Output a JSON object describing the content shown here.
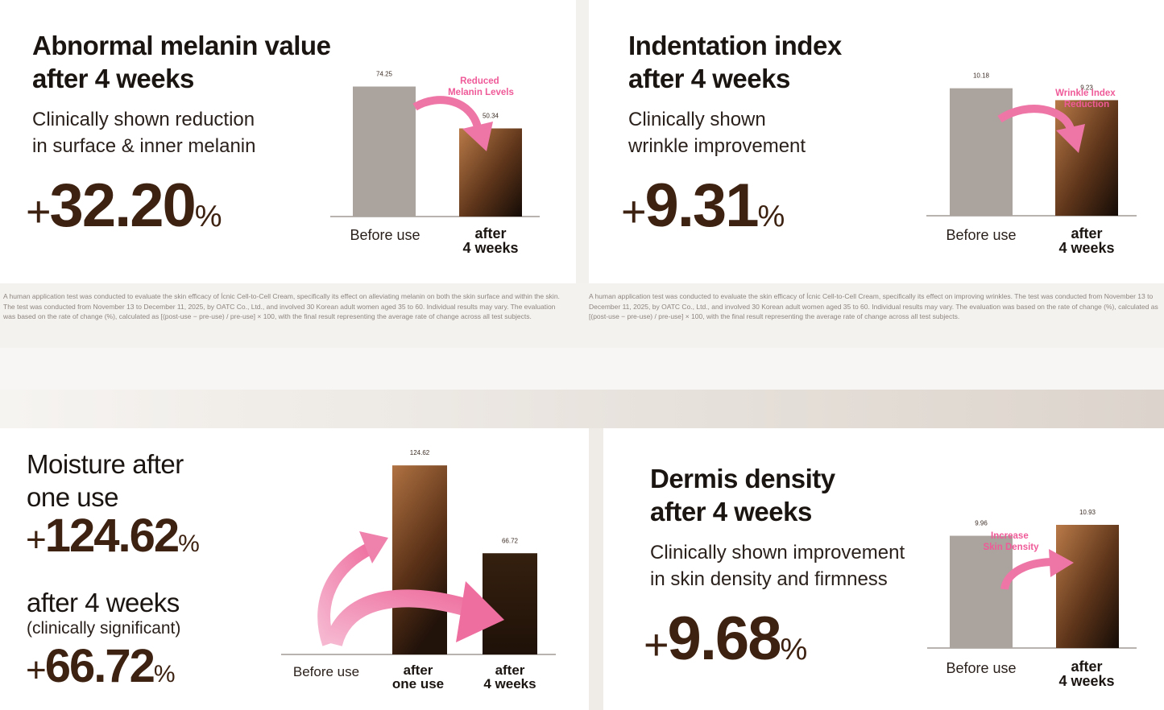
{
  "panels": [
    {
      "title_lines": [
        "Abnormal melanin value",
        "after 4 weeks"
      ],
      "subtitle_lines": [
        "Clinically shown reduction",
        "in surface & inner melanin"
      ],
      "stat": {
        "sign": "+",
        "value": "32.20",
        "unit": "%"
      },
      "annotation_lines": [
        "Reduced",
        "Melanin Levels"
      ],
      "footnote": "A human application test was conducted to evaluate the skin efficacy of Ícnic Cell-to-Cell Cream, specifically its effect on alleviating melanin on both the skin surface and within the skin. The test was conducted from November 13 to December 11, 2025, by OATC Co., Ltd., and involved 30 Korean adult women aged 35 to 60. Individual results may vary. The evaluation was based on the rate of change (%), calculated as [(post-use − pre-use) / pre-use] × 100, with the final result representing the average rate of change across all test subjects."
    },
    {
      "title_lines": [
        "Indentation index",
        "after 4 weeks"
      ],
      "subtitle_lines": [
        "Clinically shown",
        "wrinkle improvement"
      ],
      "stat": {
        "sign": "+",
        "value": "9.31",
        "unit": "%"
      },
      "annotation_lines": [
        "Wrinkle Index",
        "Reduction"
      ],
      "footnote": "A human application test was conducted to evaluate the skin efficacy of Ícnic Cell-to-Cell Cream, specifically its effect on improving wrinkles. The test was conducted from November 13 to December 11, 2025, by OATC Co., Ltd., and involved 30 Korean adult women aged 35 to 60. Individual results may vary. The evaluation was based on the rate of change (%), calculated as [(post-use − pre-use) / pre-use] × 100, with the final result representing the average rate of change across all test subjects."
    },
    {
      "title_lines": [
        "Moisture after",
        "one use"
      ],
      "stat": {
        "sign": "+",
        "value": "124.62",
        "unit": "%"
      },
      "second_title": "after 4 weeks",
      "second_note": "(clinically significant)",
      "second_stat": {
        "sign": "+",
        "value": "66.72",
        "unit": "%"
      }
    },
    {
      "title_lines": [
        "Dermis density",
        "after 4 weeks"
      ],
      "subtitle_lines": [
        "Clinically shown improvement",
        "in skin density and firmness"
      ],
      "stat": {
        "sign": "+",
        "value": "9.68",
        "unit": "%"
      },
      "annotation_lines": [
        "Increase",
        "Skin Density"
      ]
    }
  ],
  "chart_data": [
    {
      "type": "bar",
      "categories": [
        "Before use",
        "after 4 weeks"
      ],
      "values": [
        74.25,
        50.34
      ],
      "data_labels": [
        "74.25",
        "50.34"
      ],
      "ylim": [
        0,
        80
      ],
      "grid": false,
      "legend": "none",
      "colors": [
        "#aba39d",
        "#8a4f27"
      ]
    },
    {
      "type": "bar",
      "categories": [
        "Before use",
        "after 4 weeks"
      ],
      "values": [
        10.18,
        9.23
      ],
      "data_labels": [
        "10.18",
        "9.23"
      ],
      "ylim": [
        0,
        10.8
      ],
      "grid": false,
      "legend": "none",
      "colors": [
        "#aba39d",
        "#8a4f27"
      ]
    },
    {
      "type": "bar",
      "categories": [
        "Before use",
        "after one use",
        "after 4 weeks"
      ],
      "values": [
        0,
        124.62,
        66.72
      ],
      "data_labels": [
        "",
        "124.62",
        "66.72"
      ],
      "ylim": [
        0,
        130
      ],
      "grid": false,
      "legend": "none",
      "colors": [
        "#aba39d",
        "#a86b3c",
        "#2a170c"
      ]
    },
    {
      "type": "bar",
      "categories": [
        "Before use",
        "after 4 weeks"
      ],
      "values": [
        9.96,
        10.93
      ],
      "data_labels": [
        "9.96",
        "10.93"
      ],
      "ylim": [
        0,
        12.5
      ],
      "grid": false,
      "legend": "none",
      "colors": [
        "#aba39d",
        "#8a4f27"
      ]
    }
  ],
  "colors": {
    "accent_pink": "#ef72a2",
    "stat_brown": "#3d2212",
    "before_gray": "#aba39d"
  }
}
